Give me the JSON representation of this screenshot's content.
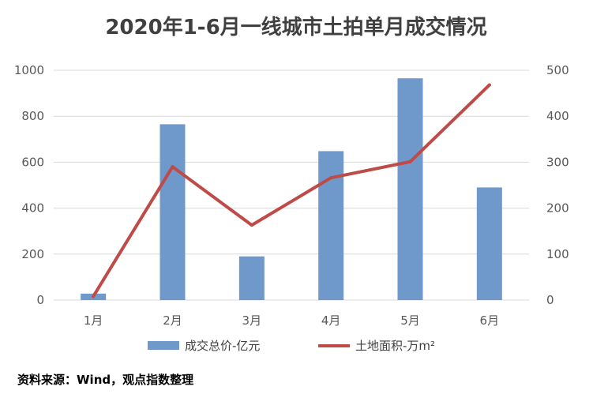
{
  "chart_data": {
    "type": "bar+line",
    "title": "2020年1-6月一线城市土拍单月成交情况",
    "categories": [
      "1月",
      "2月",
      "3月",
      "4月",
      "5月",
      "6月"
    ],
    "series": [
      {
        "name": "成交总价-亿元",
        "type": "bar",
        "axis": "left",
        "color": "#7099CB",
        "values": [
          28,
          765,
          190,
          648,
          965,
          490
        ]
      },
      {
        "name": "土地面积-万m²",
        "type": "line",
        "axis": "right",
        "color": "#BE4B48",
        "values": [
          8,
          290,
          163,
          266,
          301,
          468
        ]
      }
    ],
    "y_left": {
      "range": [
        0,
        1000
      ],
      "ticks": [
        "0",
        "200",
        "400",
        "600",
        "800",
        "1000"
      ]
    },
    "y_right": {
      "range": [
        0,
        500
      ],
      "ticks": [
        "0",
        "100",
        "200",
        "300",
        "400",
        "500"
      ]
    },
    "grid": true,
    "legend_position": "bottom",
    "source": "资料来源：Wind，观点指数整理"
  }
}
